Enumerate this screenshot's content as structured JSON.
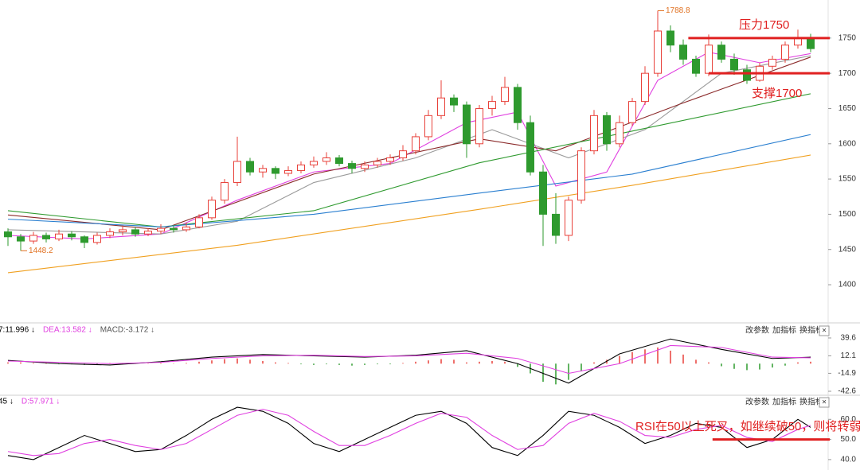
{
  "chart_data": [
    {
      "type": "candlestick",
      "up_color": "#e8413a",
      "down_color": "#2e9a2e",
      "ylim": [
        1347,
        1804
      ],
      "yticks": [
        1750,
        1700,
        1650,
        1600,
        1550,
        1500,
        1450,
        1400
      ],
      "ohlc": [
        [
          1475,
          1480,
          1455,
          1468
        ],
        [
          1468,
          1472,
          1448.2,
          1462
        ],
        [
          1462,
          1475,
          1458,
          1470
        ],
        [
          1470,
          1474,
          1460,
          1465
        ],
        [
          1465,
          1478,
          1462,
          1472
        ],
        [
          1472,
          1476,
          1463,
          1468
        ],
        [
          1468,
          1470,
          1452,
          1460
        ],
        [
          1460,
          1474,
          1457,
          1470
        ],
        [
          1470,
          1480,
          1466,
          1475
        ],
        [
          1475,
          1484,
          1470,
          1478
        ],
        [
          1478,
          1482,
          1468,
          1472
        ],
        [
          1472,
          1480,
          1469,
          1476
        ],
        [
          1476,
          1486,
          1472,
          1480
        ],
        [
          1480,
          1483,
          1474,
          1478
        ],
        [
          1478,
          1488,
          1475,
          1482
        ],
        [
          1482,
          1500,
          1480,
          1495
        ],
        [
          1495,
          1525,
          1492,
          1520
        ],
        [
          1520,
          1550,
          1515,
          1545
        ],
        [
          1545,
          1610,
          1540,
          1575
        ],
        [
          1575,
          1580,
          1555,
          1560
        ],
        [
          1560,
          1570,
          1552,
          1565
        ],
        [
          1565,
          1568,
          1550,
          1558
        ],
        [
          1558,
          1568,
          1554,
          1562
        ],
        [
          1562,
          1575,
          1558,
          1570
        ],
        [
          1570,
          1582,
          1566,
          1575
        ],
        [
          1575,
          1588,
          1570,
          1580
        ],
        [
          1580,
          1584,
          1568,
          1572
        ],
        [
          1572,
          1576,
          1558,
          1565
        ],
        [
          1565,
          1575,
          1560,
          1570
        ],
        [
          1570,
          1580,
          1566,
          1575
        ],
        [
          1575,
          1585,
          1570,
          1580
        ],
        [
          1580,
          1598,
          1576,
          1590
        ],
        [
          1590,
          1615,
          1585,
          1610
        ],
        [
          1610,
          1648,
          1605,
          1640
        ],
        [
          1640,
          1690,
          1635,
          1665
        ],
        [
          1665,
          1670,
          1645,
          1655
        ],
        [
          1655,
          1660,
          1580,
          1600
        ],
        [
          1600,
          1655,
          1595,
          1650
        ],
        [
          1650,
          1668,
          1640,
          1660
        ],
        [
          1660,
          1695,
          1655,
          1680
        ],
        [
          1680,
          1685,
          1620,
          1630
        ],
        [
          1630,
          1640,
          1555,
          1560
        ],
        [
          1560,
          1570,
          1455,
          1500
        ],
        [
          1500,
          1530,
          1458,
          1470
        ],
        [
          1470,
          1525,
          1462,
          1520
        ],
        [
          1520,
          1595,
          1515,
          1590
        ],
        [
          1590,
          1648,
          1585,
          1640
        ],
        [
          1640,
          1645,
          1590,
          1600
        ],
        [
          1600,
          1640,
          1595,
          1630
        ],
        [
          1630,
          1665,
          1625,
          1660
        ],
        [
          1660,
          1710,
          1655,
          1700
        ],
        [
          1700,
          1788.8,
          1695,
          1760
        ],
        [
          1760,
          1768,
          1730,
          1740
        ],
        [
          1740,
          1748,
          1712,
          1720
        ],
        [
          1720,
          1725,
          1695,
          1700
        ],
        [
          1700,
          1755,
          1696,
          1740
        ],
        [
          1740,
          1745,
          1715,
          1720
        ],
        [
          1720,
          1728,
          1698,
          1705
        ],
        [
          1705,
          1712,
          1685,
          1690
        ],
        [
          1690,
          1715,
          1688,
          1710
        ],
        [
          1710,
          1725,
          1705,
          1720
        ],
        [
          1720,
          1745,
          1715,
          1740
        ],
        [
          1740,
          1762,
          1735,
          1750
        ],
        [
          1750,
          1756,
          1730,
          1735
        ]
      ],
      "series": [
        {
          "color": "#e040e0",
          "x": [
            0,
            6,
            12,
            18,
            24,
            30,
            36,
            40,
            43,
            47,
            51,
            55,
            59,
            63
          ],
          "values": [
            1470,
            1465,
            1472,
            1520,
            1560,
            1572,
            1630,
            1645,
            1540,
            1560,
            1690,
            1730,
            1715,
            1728
          ]
        },
        {
          "color": "#9a9a9a",
          "x": [
            0,
            12,
            18,
            24,
            32,
            38,
            44,
            50,
            56,
            63
          ],
          "values": [
            1478,
            1472,
            1490,
            1545,
            1580,
            1620,
            1580,
            1620,
            1700,
            1725
          ]
        },
        {
          "color": "#8b2a2a",
          "x": [
            0,
            12,
            24,
            37,
            43,
            53,
            63
          ],
          "values": [
            1499,
            1478,
            1557,
            1607,
            1590,
            1658,
            1723
          ]
        },
        {
          "color": "#2f9a2f",
          "x": [
            0,
            12,
            24,
            37,
            49,
            63
          ],
          "values": [
            1505,
            1482,
            1505,
            1573,
            1618,
            1671
          ]
        },
        {
          "color": "#2a7fd0",
          "x": [
            0,
            12,
            24,
            37,
            49,
            63
          ],
          "values": [
            1493,
            1482,
            1500,
            1530,
            1557,
            1613
          ]
        },
        {
          "color": "#f0a020",
          "x": [
            0,
            18,
            37,
            49,
            63
          ],
          "values": [
            1417,
            1456,
            1507,
            1541,
            1584
          ]
        }
      ],
      "annotations": [
        {
          "text": "压力1750",
          "value": 1750,
          "x": [
            53.4,
            64.5
          ]
        },
        {
          "text": "支撑1700",
          "value": 1700,
          "x": [
            55,
            64.5
          ]
        }
      ]
    },
    {
      "type": "macd",
      "header": [
        {
          "label": "7:11.996 ↓",
          "color": "#000000"
        },
        {
          "label": "DEA:13.582 ↓",
          "color": "#e040e0"
        },
        {
          "label": "MACD:-3.172 ↓",
          "color": "#555555"
        }
      ],
      "ylim": [
        -47.5,
        55.5
      ],
      "yticks": [
        39.6,
        12.1,
        -14.9,
        -42.6
      ],
      "histogram": [
        2,
        2,
        1,
        1,
        -1,
        -1,
        -2,
        -1,
        1,
        1,
        0.5,
        0.5,
        1,
        0.5,
        1,
        3,
        5,
        7,
        8,
        6,
        4,
        2,
        1,
        -1,
        -2,
        -1,
        -2,
        -3,
        -2,
        -1,
        -1,
        1,
        3,
        5,
        7,
        6,
        2,
        3,
        4,
        3,
        -5,
        -15,
        -28,
        -32,
        -25,
        -12,
        2,
        6,
        12,
        18,
        22,
        25,
        20,
        14,
        6,
        2,
        -4,
        -8,
        -10,
        -9,
        -6,
        -3,
        2,
        3
      ],
      "series": [
        {
          "color": "#000000",
          "x": [
            0,
            4,
            8,
            12,
            16,
            20,
            24,
            28,
            32,
            36,
            40,
            44,
            48,
            52,
            56,
            60,
            63
          ],
          "values": [
            5,
            0,
            -2,
            3,
            10,
            14,
            12,
            10,
            13,
            20,
            0,
            -30,
            15,
            38,
            22,
            8,
            10
          ]
        },
        {
          "color": "#e040e0",
          "x": [
            0,
            4,
            8,
            12,
            16,
            20,
            24,
            28,
            32,
            36,
            40,
            44,
            48,
            52,
            56,
            60,
            63
          ],
          "values": [
            4,
            2,
            0,
            2,
            8,
            12,
            13,
            11,
            12,
            16,
            8,
            -15,
            0,
            28,
            25,
            10,
            9
          ]
        }
      ]
    },
    {
      "type": "line",
      "header": [
        {
          "label": "45 ↓",
          "color": "#000000"
        },
        {
          "label": "D:57.971 ↓",
          "color": "#e040e0"
        }
      ],
      "ylim": [
        36,
        70
      ],
      "yticks": [
        {
          "value": 60,
          "label": "60.0"
        },
        {
          "value": 50,
          "label": "50.0"
        },
        {
          "value": 40,
          "label": "40.0"
        }
      ],
      "series": [
        {
          "color": "#000000",
          "x": [
            0,
            2,
            4,
            6,
            8,
            10,
            12,
            14,
            16,
            18,
            20,
            22,
            24,
            26,
            28,
            30,
            32,
            34,
            36,
            38,
            40,
            42,
            44,
            46,
            48,
            50,
            52,
            54,
            56,
            58,
            60,
            62,
            63
          ],
          "values": [
            42,
            40,
            46,
            52,
            48,
            44,
            45,
            52,
            60,
            66,
            64,
            58,
            48,
            44,
            50,
            56,
            62,
            64,
            58,
            46,
            42,
            52,
            64,
            62,
            56,
            48,
            52,
            58,
            56,
            46,
            50,
            60,
            56
          ]
        },
        {
          "color": "#e040e0",
          "x": [
            0,
            2,
            4,
            6,
            8,
            10,
            12,
            14,
            16,
            18,
            20,
            22,
            24,
            26,
            28,
            30,
            32,
            34,
            36,
            38,
            40,
            42,
            44,
            46,
            48,
            50,
            52,
            54,
            56,
            58,
            60,
            62,
            63
          ],
          "values": [
            44,
            42,
            43,
            48,
            50,
            47,
            45,
            48,
            55,
            62,
            65,
            62,
            54,
            47,
            47,
            52,
            58,
            63,
            61,
            52,
            45,
            47,
            58,
            63,
            59,
            52,
            51,
            55,
            57,
            51,
            49,
            55,
            57
          ]
        }
      ],
      "annotations": [
        {
          "text": "RSI在50以上死叉，如继续破50，则将转弱",
          "value": 50,
          "x": [
            55.3,
            64.5
          ]
        }
      ]
    }
  ],
  "panel_buttons": [
    "改参数",
    "加指标",
    "换指标",
    "×"
  ]
}
